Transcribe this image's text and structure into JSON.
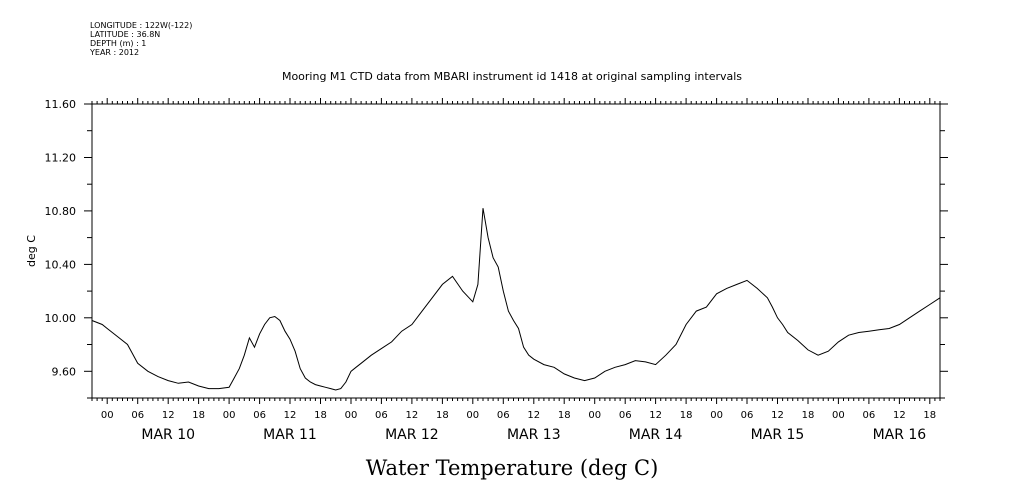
{
  "header": {
    "metadata_lines": [
      "LONGITUDE : 122W(-122)",
      "LATITUDE : 36.8N",
      "DEPTH (m) : 1",
      "YEAR : 2012"
    ]
  },
  "chart_data": {
    "type": "line",
    "title": "Mooring M1 CTD data from MBARI instrument id 1418 at original sampling intervals",
    "ylabel": "deg C",
    "xlabel": "Water Temperature (deg C)",
    "ylim": [
      9.4,
      11.6
    ],
    "y_ticks": [
      "11.60",
      "11.20",
      "10.80",
      "10.40",
      "10.00",
      "9.60"
    ],
    "y_tick_values": [
      11.6,
      11.2,
      10.8,
      10.4,
      10.0,
      9.6
    ],
    "x_unit": "hours since MAR 10 00:00",
    "xlim": [
      -3,
      164
    ],
    "hour_tick_labels": [
      "00",
      "06",
      "12",
      "18",
      "00",
      "06",
      "12",
      "18",
      "00",
      "06",
      "12",
      "18",
      "00",
      "06",
      "12",
      "18",
      "00",
      "06",
      "12",
      "18",
      "00",
      "06",
      "12",
      "18",
      "00",
      "06",
      "12",
      "18"
    ],
    "day_labels": [
      "MAR 10",
      "MAR 11",
      "MAR 12",
      "MAR 13",
      "MAR 14",
      "MAR 15",
      "MAR 16"
    ],
    "grid": false,
    "series": [
      {
        "x": [
          -3,
          -1,
          0,
          2,
          4,
          5,
          6,
          8,
          10,
          12,
          14,
          16,
          18,
          20,
          22,
          24,
          25,
          26,
          27,
          28,
          29,
          30,
          31,
          32,
          33,
          34,
          35,
          36,
          37,
          38,
          39,
          40,
          41,
          42,
          43,
          44,
          45,
          46,
          47,
          48,
          49,
          50,
          52,
          54,
          56,
          58,
          60,
          62,
          64,
          66,
          68,
          70,
          72,
          73,
          74,
          75,
          76,
          77,
          78,
          79,
          80,
          81,
          82,
          83,
          84,
          86,
          88,
          90,
          92,
          94,
          96,
          98,
          100,
          102,
          104,
          106,
          108,
          110,
          112,
          114,
          116,
          118,
          120,
          122,
          124,
          126,
          127,
          128,
          130,
          131,
          132,
          133,
          134,
          136,
          138,
          140,
          142,
          144,
          146,
          148,
          150,
          152,
          154,
          156,
          158,
          160,
          162,
          164
        ],
        "values": [
          9.98,
          9.95,
          9.92,
          9.86,
          9.8,
          9.73,
          9.66,
          9.6,
          9.56,
          9.53,
          9.51,
          9.52,
          9.49,
          9.47,
          9.47,
          9.48,
          9.55,
          9.62,
          9.72,
          9.85,
          9.78,
          9.88,
          9.95,
          10.0,
          10.01,
          9.98,
          9.9,
          9.84,
          9.75,
          9.62,
          9.55,
          9.52,
          9.5,
          9.49,
          9.48,
          9.47,
          9.46,
          9.47,
          9.52,
          9.6,
          9.63,
          9.66,
          9.72,
          9.77,
          9.82,
          9.9,
          9.95,
          10.05,
          10.15,
          10.25,
          10.31,
          10.2,
          10.12,
          10.25,
          10.82,
          10.6,
          10.45,
          10.38,
          10.2,
          10.05,
          9.98,
          9.92,
          9.78,
          9.72,
          9.69,
          9.65,
          9.63,
          9.58,
          9.55,
          9.53,
          9.55,
          9.6,
          9.63,
          9.65,
          9.68,
          9.67,
          9.65,
          9.72,
          9.8,
          9.95,
          10.05,
          10.08,
          10.18,
          10.22,
          10.25,
          10.28,
          10.25,
          10.22,
          10.15,
          10.08,
          10.0,
          9.95,
          9.89,
          9.83,
          9.76,
          9.72,
          9.75,
          9.82,
          9.87,
          9.89,
          9.9,
          9.91,
          9.92,
          9.95,
          10.0,
          10.05,
          10.1,
          10.15
        ]
      }
    ]
  }
}
